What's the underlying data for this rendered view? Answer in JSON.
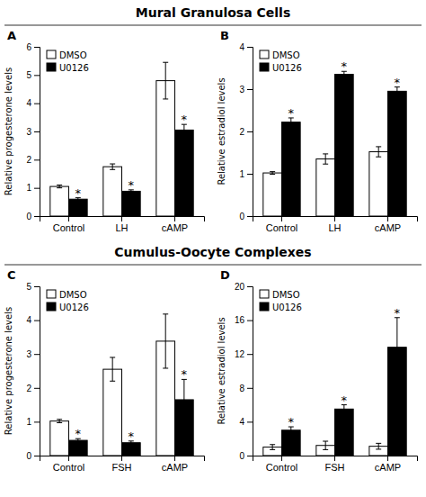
{
  "chart_data": [
    {
      "type": "bar",
      "title": "A",
      "subtitle": "Mural Granulosa Cells",
      "ylabel": "Relative progesterone levels",
      "categories": [
        "Control",
        "LH",
        "cAMP"
      ],
      "series": [
        {
          "name": "DMSO",
          "color": "white",
          "values": [
            1.05,
            1.75,
            4.8
          ],
          "errors": [
            0.05,
            0.1,
            0.65
          ]
        },
        {
          "name": "U0126",
          "color": "black",
          "values": [
            0.6,
            0.88,
            3.05
          ],
          "errors": [
            0.05,
            0.05,
            0.2
          ],
          "annotations": [
            "*",
            "*",
            "*"
          ]
        }
      ],
      "ylim": [
        0,
        6
      ],
      "yticks": [
        0,
        1,
        2,
        3,
        4,
        5,
        6
      ],
      "legend": "upper left"
    },
    {
      "type": "bar",
      "title": "B",
      "ylabel": "Relative estradiol levels",
      "categories": [
        "Control",
        "LH",
        "cAMP"
      ],
      "series": [
        {
          "name": "DMSO",
          "color": "white",
          "values": [
            1.02,
            1.35,
            1.52
          ],
          "errors": [
            0.03,
            0.12,
            0.12
          ]
        },
        {
          "name": "U0126",
          "color": "black",
          "values": [
            2.22,
            3.35,
            2.95
          ],
          "errors": [
            0.1,
            0.07,
            0.1
          ],
          "annotations": [
            "*",
            "*",
            "*"
          ]
        }
      ],
      "ylim": [
        0,
        4
      ],
      "yticks": [
        0,
        1,
        2,
        3,
        4
      ],
      "legend": "upper left"
    },
    {
      "type": "bar",
      "title": "C",
      "subtitle": "Cumulus-Oocyte Complexes",
      "ylabel": "Relative progesterone levels",
      "categories": [
        "Control",
        "FSH",
        "cAMP"
      ],
      "series": [
        {
          "name": "DMSO",
          "color": "white",
          "values": [
            1.02,
            2.55,
            3.38
          ],
          "errors": [
            0.05,
            0.35,
            0.8
          ]
        },
        {
          "name": "U0126",
          "color": "black",
          "values": [
            0.45,
            0.38,
            1.65
          ],
          "errors": [
            0.05,
            0.05,
            0.6
          ],
          "annotations": [
            "*",
            "*",
            "*"
          ]
        }
      ],
      "ylim": [
        0,
        5
      ],
      "yticks": [
        0,
        1,
        2,
        3,
        4,
        5
      ],
      "legend": "upper left"
    },
    {
      "type": "bar",
      "title": "D",
      "ylabel": "Relative estradiol levels",
      "categories": [
        "Control",
        "FSH",
        "cAMP"
      ],
      "series": [
        {
          "name": "DMSO",
          "color": "white",
          "values": [
            1.0,
            1.2,
            1.1
          ],
          "errors": [
            0.3,
            0.5,
            0.35
          ]
        },
        {
          "name": "U0126",
          "color": "black",
          "values": [
            3.0,
            5.5,
            12.8
          ],
          "errors": [
            0.4,
            0.5,
            3.5
          ],
          "annotations": [
            "*",
            "*",
            "*"
          ]
        }
      ],
      "ylim": [
        0,
        20
      ],
      "yticks": [
        0,
        4,
        8,
        12,
        16,
        20
      ],
      "legend": "upper left"
    }
  ]
}
